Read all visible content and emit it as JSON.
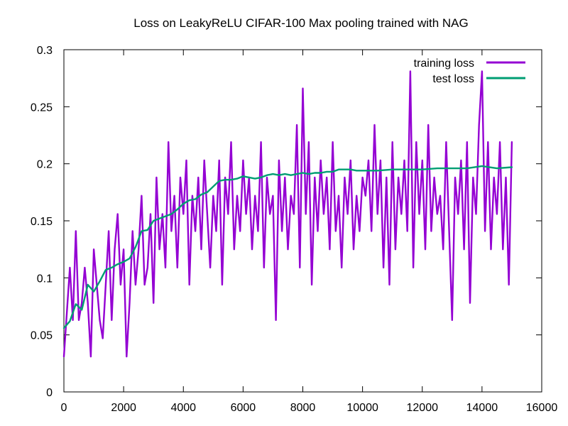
{
  "chart_data": {
    "type": "line",
    "title": "Loss on LeakyReLU CIFAR-100 Max pooling trained with NAG",
    "xlabel": "",
    "ylabel": "",
    "xlim": [
      0,
      16000
    ],
    "ylim": [
      0,
      0.3
    ],
    "grid": false,
    "legend_position": "top-right",
    "x_ticks": [
      0,
      2000,
      4000,
      6000,
      8000,
      10000,
      12000,
      14000,
      16000
    ],
    "x_tick_labels": [
      "0",
      "2000",
      "4000",
      "6000",
      "8000",
      "10000",
      "12000",
      "14000",
      "16000"
    ],
    "y_ticks": [
      0,
      0.05,
      0.1,
      0.15,
      0.2,
      0.25,
      0.3
    ],
    "y_tick_labels": [
      "0",
      "0.05",
      "0.1",
      "0.15",
      "0.2",
      "0.25",
      "0.3"
    ],
    "series": [
      {
        "name": "training loss",
        "color": "#9400d3",
        "x": [
          0,
          100,
          200,
          300,
          400,
          500,
          600,
          700,
          800,
          900,
          1000,
          1100,
          1200,
          1300,
          1400,
          1500,
          1600,
          1700,
          1800,
          1900,
          2000,
          2100,
          2200,
          2300,
          2400,
          2500,
          2600,
          2700,
          2800,
          2900,
          3000,
          3100,
          3200,
          3300,
          3400,
          3500,
          3600,
          3700,
          3800,
          3900,
          4000,
          4100,
          4200,
          4300,
          4400,
          4500,
          4600,
          4700,
          4800,
          4900,
          5000,
          5100,
          5200,
          5300,
          5400,
          5500,
          5600,
          5700,
          5800,
          5900,
          6000,
          6100,
          6200,
          6300,
          6400,
          6500,
          6600,
          6700,
          6800,
          6900,
          7000,
          7100,
          7200,
          7300,
          7400,
          7500,
          7600,
          7700,
          7800,
          7900,
          8000,
          8100,
          8200,
          8300,
          8400,
          8500,
          8600,
          8700,
          8800,
          8900,
          9000,
          9100,
          9200,
          9300,
          9400,
          9500,
          9600,
          9700,
          9800,
          9900,
          10000,
          10100,
          10200,
          10300,
          10400,
          10500,
          10600,
          10700,
          10800,
          10900,
          11000,
          11100,
          11200,
          11300,
          11400,
          11500,
          11600,
          11700,
          11800,
          11900,
          12000,
          12100,
          12200,
          12300,
          12400,
          12500,
          12600,
          12700,
          12800,
          12900,
          13000,
          13100,
          13200,
          13300,
          13400,
          13500,
          13600,
          13700,
          13800,
          13900,
          14000,
          14100,
          14200,
          14300,
          14400,
          14500,
          14600,
          14700,
          14800,
          14900,
          15000
        ],
        "y": [
          0.031,
          0.07,
          0.109,
          0.063,
          0.141,
          0.063,
          0.078,
          0.109,
          0.078,
          0.031,
          0.125,
          0.094,
          0.063,
          0.047,
          0.094,
          0.141,
          0.063,
          0.125,
          0.156,
          0.094,
          0.125,
          0.031,
          0.078,
          0.141,
          0.094,
          0.125,
          0.172,
          0.094,
          0.109,
          0.156,
          0.078,
          0.188,
          0.125,
          0.156,
          0.109,
          0.219,
          0.141,
          0.172,
          0.109,
          0.188,
          0.156,
          0.203,
          0.094,
          0.172,
          0.141,
          0.188,
          0.125,
          0.203,
          0.156,
          0.109,
          0.172,
          0.141,
          0.203,
          0.094,
          0.188,
          0.156,
          0.219,
          0.125,
          0.172,
          0.141,
          0.203,
          0.156,
          0.188,
          0.125,
          0.172,
          0.141,
          0.219,
          0.109,
          0.188,
          0.156,
          0.172,
          0.063,
          0.203,
          0.141,
          0.188,
          0.125,
          0.172,
          0.156,
          0.234,
          0.109,
          0.266,
          0.156,
          0.219,
          0.094,
          0.188,
          0.141,
          0.203,
          0.156,
          0.188,
          0.125,
          0.219,
          0.141,
          0.172,
          0.109,
          0.188,
          0.156,
          0.203,
          0.125,
          0.172,
          0.141,
          0.188,
          0.172,
          0.203,
          0.141,
          0.234,
          0.156,
          0.203,
          0.109,
          0.188,
          0.094,
          0.219,
          0.125,
          0.188,
          0.156,
          0.203,
          0.141,
          0.281,
          0.109,
          0.219,
          0.156,
          0.203,
          0.125,
          0.234,
          0.141,
          0.188,
          0.156,
          0.172,
          0.125,
          0.219,
          0.141,
          0.063,
          0.188,
          0.156,
          0.203,
          0.125,
          0.219,
          0.078,
          0.188,
          0.156,
          0.234,
          0.281,
          0.141,
          0.219,
          0.125,
          0.188,
          0.156,
          0.219,
          0.125,
          0.188,
          0.094,
          0.219
        ]
      },
      {
        "name": "test loss",
        "color": "#009e73",
        "x": [
          0,
          200,
          400,
          600,
          800,
          1000,
          1200,
          1400,
          1600,
          1800,
          2000,
          2200,
          2400,
          2600,
          2800,
          3000,
          3200,
          3400,
          3600,
          3800,
          4000,
          4200,
          4400,
          4600,
          4800,
          5000,
          5200,
          5400,
          5600,
          5800,
          6000,
          6200,
          6400,
          6600,
          6800,
          7000,
          7200,
          7400,
          7600,
          7800,
          8000,
          8200,
          8400,
          8600,
          8800,
          9000,
          9200,
          9400,
          9600,
          9800,
          10000,
          10500,
          11000,
          11500,
          12000,
          12500,
          13000,
          13500,
          14000,
          14500,
          15000
        ],
        "y": [
          0.056,
          0.062,
          0.077,
          0.072,
          0.094,
          0.088,
          0.097,
          0.107,
          0.109,
          0.112,
          0.114,
          0.117,
          0.127,
          0.141,
          0.142,
          0.15,
          0.152,
          0.154,
          0.156,
          0.16,
          0.165,
          0.168,
          0.169,
          0.173,
          0.175,
          0.18,
          0.185,
          0.186,
          0.186,
          0.187,
          0.189,
          0.188,
          0.187,
          0.188,
          0.19,
          0.191,
          0.19,
          0.191,
          0.19,
          0.191,
          0.192,
          0.191,
          0.192,
          0.192,
          0.193,
          0.193,
          0.195,
          0.195,
          0.195,
          0.194,
          0.194,
          0.194,
          0.195,
          0.195,
          0.195,
          0.196,
          0.196,
          0.196,
          0.198,
          0.196,
          0.197
        ]
      }
    ]
  }
}
